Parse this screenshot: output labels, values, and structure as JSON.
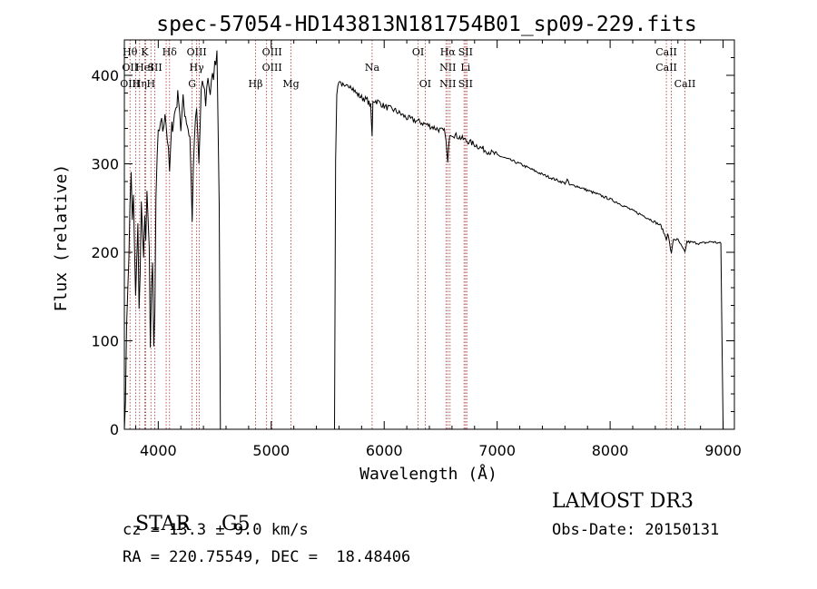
{
  "chart_data": {
    "type": "line",
    "title": "spec-57054-HD143813N181754B01_sp09-229.fits",
    "xlabel": "Wavelength (Å)",
    "ylabel": "Flux (relative)",
    "xlim": [
      3700,
      9100
    ],
    "ylim": [
      0,
      440
    ],
    "xticks": [
      4000,
      5000,
      6000,
      7000,
      8000,
      9000
    ],
    "yticks": [
      0,
      100,
      200,
      300,
      400
    ],
    "series": [
      {
        "name": "flux",
        "segments": [
          [
            [
              3700,
              0
            ],
            [
              3710,
              40
            ],
            [
              3720,
              110
            ],
            [
              3730,
              160
            ],
            [
              3740,
              200
            ],
            [
              3750,
              250
            ],
            [
              3760,
              290
            ],
            [
              3770,
              240
            ],
            [
              3780,
              260
            ],
            [
              3790,
              200
            ],
            [
              3800,
              150
            ],
            [
              3810,
              190
            ],
            [
              3820,
              230
            ],
            [
              3830,
              130
            ],
            [
              3840,
              180
            ],
            [
              3850,
              260
            ],
            [
              3860,
              220
            ],
            [
              3870,
              190
            ],
            [
              3880,
              250
            ],
            [
              3890,
              210
            ],
            [
              3900,
              270
            ],
            [
              3910,
              230
            ],
            [
              3920,
              200
            ],
            [
              3930,
              100
            ],
            [
              3940,
              160
            ],
            [
              3950,
              180
            ],
            [
              3960,
              90
            ],
            [
              3970,
              130
            ],
            [
              3980,
              260
            ],
            [
              3990,
              300
            ],
            [
              4000,
              330
            ],
            [
              4020,
              350
            ],
            [
              4040,
              340
            ],
            [
              4060,
              360
            ],
            [
              4080,
              330
            ],
            [
              4100,
              290
            ],
            [
              4120,
              340
            ],
            [
              4150,
              360
            ],
            [
              4180,
              380
            ],
            [
              4200,
              340
            ],
            [
              4220,
              370
            ],
            [
              4250,
              350
            ],
            [
              4280,
              330
            ],
            [
              4300,
              240
            ],
            [
              4320,
              330
            ],
            [
              4340,
              360
            ],
            [
              4360,
              300
            ],
            [
              4380,
              380
            ],
            [
              4400,
              390
            ],
            [
              4420,
              370
            ],
            [
              4440,
              400
            ],
            [
              4460,
              380
            ],
            [
              4480,
              395
            ],
            [
              4500,
              410
            ],
            [
              4520,
              430
            ],
            [
              4540,
              260
            ],
            [
              4550,
              0
            ]
          ],
          [
            [
              5560,
              0
            ],
            [
              5570,
              300
            ],
            [
              5580,
              380
            ],
            [
              5600,
              395
            ],
            [
              5650,
              385
            ],
            [
              5700,
              390
            ],
            [
              5750,
              380
            ],
            [
              5800,
              375
            ],
            [
              5850,
              372
            ],
            [
              5880,
              365
            ],
            [
              5893,
              330
            ],
            [
              5900,
              372
            ],
            [
              5950,
              370
            ],
            [
              6000,
              365
            ],
            [
              6100,
              360
            ],
            [
              6200,
              352
            ],
            [
              6300,
              348
            ],
            [
              6400,
              343
            ],
            [
              6500,
              338
            ],
            [
              6540,
              336
            ],
            [
              6563,
              300
            ],
            [
              6580,
              335
            ],
            [
              6700,
              328
            ],
            [
              6800,
              322
            ],
            [
              6900,
              315
            ],
            [
              7000,
              310
            ],
            [
              7100,
              305
            ],
            [
              7200,
              300
            ],
            [
              7300,
              294
            ],
            [
              7400,
              288
            ],
            [
              7500,
              283
            ],
            [
              7600,
              278
            ],
            [
              7620,
              282
            ],
            [
              7640,
              276
            ],
            [
              7700,
              275
            ],
            [
              7800,
              270
            ],
            [
              7900,
              265
            ],
            [
              8000,
              260
            ],
            [
              8100,
              254
            ],
            [
              8200,
              247
            ],
            [
              8300,
              241
            ],
            [
              8400,
              234
            ],
            [
              8450,
              230
            ],
            [
              8498,
              215
            ],
            [
              8510,
              222
            ],
            [
              8542,
              198
            ],
            [
              8560,
              215
            ],
            [
              8600,
              214
            ],
            [
              8662,
              200
            ],
            [
              8680,
              212
            ],
            [
              8800,
              210
            ],
            [
              8900,
              212
            ],
            [
              8980,
              210
            ],
            [
              9000,
              0
            ]
          ]
        ]
      }
    ],
    "line_markers": [
      {
        "wave": 3750,
        "labels": [
          "Hθ",
          "OII",
          "OIII"
        ]
      },
      {
        "wave": 3835,
        "labels": [
          "",
          "",
          "Hη"
        ]
      },
      {
        "wave": 3880,
        "labels": [
          "K",
          "HeI",
          ""
        ]
      },
      {
        "wave": 3935,
        "labels": [
          "",
          "",
          "H"
        ]
      },
      {
        "wave": 3970,
        "labels": [
          "",
          "SII",
          ""
        ]
      },
      {
        "wave": 4100,
        "labels": [
          "Hδ",
          "",
          ""
        ]
      },
      {
        "wave": 4300,
        "labels": [
          "",
          "",
          "G"
        ]
      },
      {
        "wave": 4340,
        "labels": [
          "OIII",
          "Hγ",
          ""
        ]
      },
      {
        "wave": 4861,
        "labels": [
          "",
          "",
          "Hβ"
        ]
      },
      {
        "wave": 5007,
        "labels": [
          "OIII",
          "OIII",
          ""
        ]
      },
      {
        "wave": 5175,
        "labels": [
          "",
          "",
          "Mg"
        ]
      },
      {
        "wave": 5893,
        "labels": [
          "",
          "Na",
          ""
        ]
      },
      {
        "wave": 6300,
        "labels": [
          "OI",
          "",
          ""
        ]
      },
      {
        "wave": 6363,
        "labels": [
          "",
          "",
          "OI"
        ]
      },
      {
        "wave": 6563,
        "labels": [
          "Hα",
          "NII",
          "NII"
        ]
      },
      {
        "wave": 6720,
        "labels": [
          "SII",
          "Li",
          "SII"
        ]
      },
      {
        "wave": 8498,
        "labels": [
          "CaII",
          "CaII",
          ""
        ]
      },
      {
        "wave": 8662,
        "labels": [
          "",
          "",
          "CaII"
        ]
      }
    ],
    "extra_marker_waves": [
      3800,
      3889,
      4070,
      4363,
      4959,
      6548,
      6583,
      6707,
      6731,
      8542
    ]
  },
  "info": {
    "class_label": "STAR",
    "subclass": "G5",
    "survey": "LAMOST DR3",
    "cz": "cz = 13.3 ± 9.0 km/s",
    "obs_date": "Obs-Date: 20150131",
    "coords": "RA = 220.75549, DEC =  18.48406"
  }
}
